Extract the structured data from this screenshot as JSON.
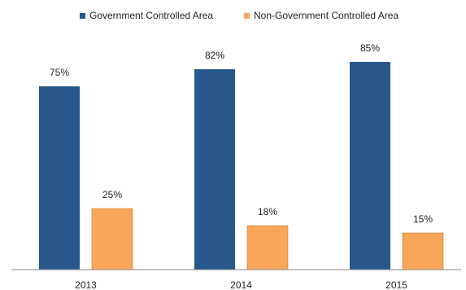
{
  "chart_data": {
    "type": "bar",
    "categories": [
      "2013",
      "2014",
      "2015"
    ],
    "series": [
      {
        "name": "Government Controlled Area",
        "values": [
          75,
          82,
          85
        ],
        "color": "#275889"
      },
      {
        "name": "Non-Government Controlled Area",
        "values": [
          25,
          18,
          15
        ],
        "color": "#F9A65A"
      }
    ],
    "data_labels": [
      [
        "75%",
        "82%",
        "85%"
      ],
      [
        "25%",
        "18%",
        "15%"
      ]
    ],
    "ylim": [
      0,
      100
    ],
    "legend_position": "top",
    "grid": false,
    "title": "",
    "xlabel": "",
    "ylabel": ""
  }
}
